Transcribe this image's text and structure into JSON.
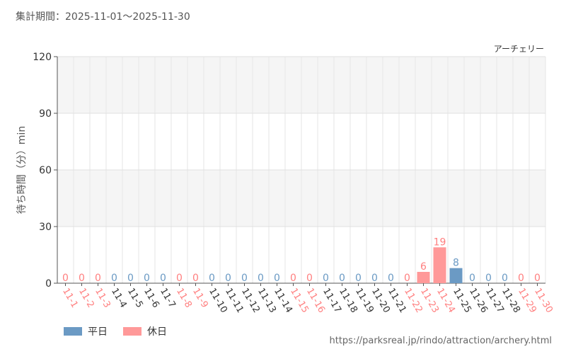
{
  "header": {
    "period": "集計期間：2025-11-01〜2025-11-30"
  },
  "footer": {
    "source_url": "https://parksreal.jp/rindo/attraction/archery.html"
  },
  "colors": {
    "weekday": "#6b9ac4",
    "holiday": "#ff9999",
    "weekday_text": "#333333",
    "holiday_text": "#ff7f7f"
  },
  "legend": {
    "weekday_label": "平日",
    "holiday_label": "休日"
  },
  "chart_data": {
    "type": "bar",
    "title": "アーチェリー",
    "ylabel": "待ち時間（分）min",
    "ylim": [
      0,
      120
    ],
    "yticks": [
      0,
      30,
      60,
      90,
      120
    ],
    "grid": true,
    "legend_position": "bottom-left",
    "categories": [
      "11-1",
      "11-2",
      "11-3",
      "11-4",
      "11-5",
      "11-6",
      "11-7",
      "11-8",
      "11-9",
      "11-10",
      "11-11",
      "11-12",
      "11-13",
      "11-14",
      "11-15",
      "11-16",
      "11-17",
      "11-18",
      "11-19",
      "11-20",
      "11-21",
      "11-22",
      "11-23",
      "11-24",
      "11-25",
      "11-26",
      "11-27",
      "11-28",
      "11-29",
      "11-30"
    ],
    "values": [
      0,
      0,
      0,
      0,
      0,
      0,
      0,
      0,
      0,
      0,
      0,
      0,
      0,
      0,
      0,
      0,
      0,
      0,
      0,
      0,
      0,
      0,
      6,
      19,
      8,
      0,
      0,
      0,
      0,
      0
    ],
    "day_type": [
      "holiday",
      "holiday",
      "holiday",
      "weekday",
      "weekday",
      "weekday",
      "weekday",
      "holiday",
      "holiday",
      "weekday",
      "weekday",
      "weekday",
      "weekday",
      "weekday",
      "holiday",
      "holiday",
      "weekday",
      "weekday",
      "weekday",
      "weekday",
      "weekday",
      "holiday",
      "holiday",
      "holiday",
      "weekday",
      "weekday",
      "weekday",
      "weekday",
      "holiday",
      "holiday"
    ]
  }
}
